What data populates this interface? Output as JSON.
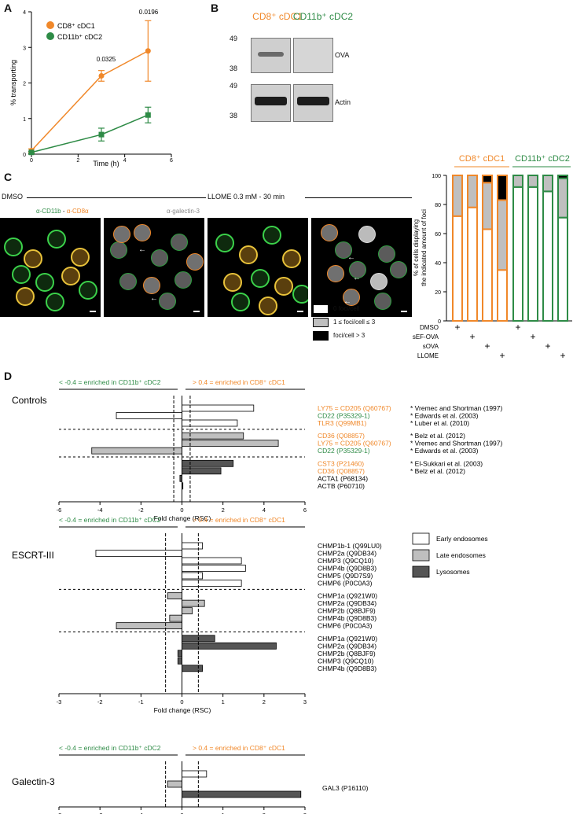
{
  "panels": {
    "a": "A",
    "b": "B",
    "c": "C",
    "d": "D"
  },
  "colors": {
    "orange": "#f0882a",
    "green": "#2e8b46",
    "dark": "#555555",
    "light": "#bfbfbf"
  },
  "panelA": {
    "legend": [
      "CD8⁺ cDC1",
      "CD11b⁺ cDC2"
    ],
    "ylabel": "% transporting",
    "xlabel": "Time (h)",
    "pvals": [
      "0.0325",
      "0.0196"
    ],
    "xticks": [
      "0",
      "2",
      "4",
      "6"
    ],
    "yticks": [
      "0",
      "1",
      "2",
      "3",
      "4"
    ]
  },
  "panelB": {
    "col1": "CD8⁺ cDC1",
    "col2": "CD11b⁺ cDC2",
    "mw": [
      "49",
      "38",
      "49",
      "38"
    ],
    "rows": [
      "OVA",
      "Actin"
    ]
  },
  "panelC": {
    "dmso": "DMSO",
    "llome": "LLOME 0.3 mM - 30 min",
    "stain1": "α-CD11b",
    "stain_sep": " - ",
    "stain2": "α-CD8α",
    "stain3": "α-galectin-3",
    "legend": [
      "0 foci/cell",
      "1 ≤ foci/cell ≤ 3",
      "foci/cell > 3"
    ],
    "bar_titles": [
      "CD8⁺ cDC1",
      "CD11b⁺ cDC2"
    ],
    "bar_ylabel1": "% of cells displaying",
    "bar_ylabel2": "the indicated amount of foci",
    "yticks": [
      "0",
      "20",
      "40",
      "60",
      "80",
      "100"
    ],
    "conditions": [
      "DMSO",
      "sEF-OVA",
      "sOVA",
      "LLOME"
    ],
    "plus": "+"
  },
  "panelD": {
    "left_arrow": "< -0.4 = enriched in CD11b⁺ cDC2",
    "right_arrow": "> 0.4 = enriched in CD8⁺ cDC1",
    "xlabel": "Fold change (RSC)",
    "legend": [
      "Early endosomes",
      "Late endosomes",
      "Lysosomes"
    ],
    "controls": {
      "title": "Controls",
      "ticks": [
        "-6",
        "-4",
        "-2",
        "0",
        "2",
        "4",
        "6"
      ],
      "labels": [
        "LY75 = CD205 (Q60767)",
        "CD22 (P35329-1)",
        "TLR3 (Q99MB1)",
        "CD36 (Q08857)",
        "LY75 = CD205 (Q60767)",
        "CD22 (P35329-1)",
        "CST3 (P21460)",
        "CD36 (Q08857)",
        "ACTA1 (P68134)",
        "ACTB (P60710)"
      ],
      "refs": [
        "* Vremec and Shortman (1997)",
        "* Edwards et al. (2003)",
        "* Luber et al. (2010)",
        "* Belz et al. (2012)",
        "* Vremec and Shortman (1997)",
        "* Edwards et al. (2003)",
        "* El-Sukkari et al. (2003)",
        "* Belz et al. (2012)"
      ]
    },
    "escrt": {
      "title": "ESCRT-III",
      "ticks": [
        "-3",
        "-2",
        "-1",
        "0",
        "1",
        "2",
        "3"
      ],
      "labels": [
        "CHMP1b-1 (Q99LU0)",
        "CHMP2a (Q9DB34)",
        "CHMP3 (Q9CQ10)",
        "CHMP4b (Q9D8B3)",
        "CHMP5 (Q9D7S9)",
        "CHMP6 (P0C0A3)",
        "CHMP1a (Q921W0)",
        "CHMP2a (Q9DB34)",
        "CHMP2b (Q8BJF9)",
        "CHMP4b (Q9D8B3)",
        "CHMP6 (P0C0A3)",
        "CHMP1a (Q921W0)",
        "CHMP2a (Q9DB34)",
        "CHMP2b (Q8BJF9)",
        "CHMP3 (Q9CQ10)",
        "CHMP4b (Q9D8B3)"
      ]
    },
    "gal": {
      "title": "Galectin-3",
      "ticks": [
        "-3",
        "-2",
        "-1",
        "0",
        "1",
        "2",
        "3"
      ],
      "labels": [
        "GAL3 (P16110)"
      ]
    }
  },
  "chart_data": [
    {
      "type": "line",
      "panel": "A",
      "xlabel": "Time (h)",
      "ylabel": "% transporting",
      "xlim": [
        0,
        6
      ],
      "ylim": [
        0,
        4
      ],
      "x": [
        0,
        3,
        5
      ],
      "series": [
        {
          "name": "CD8⁺ cDC1",
          "values": [
            0.1,
            2.2,
            2.9
          ],
          "err": [
            0.05,
            0.15,
            0.85
          ]
        },
        {
          "name": "CD11b⁺ cDC2",
          "values": [
            0.05,
            0.55,
            1.1
          ],
          "err": [
            0.03,
            0.18,
            0.22
          ]
        }
      ],
      "annotations": [
        "0.0325",
        "0.0196"
      ]
    },
    {
      "type": "bar",
      "panel": "C",
      "ylabel": "% of cells displaying the indicated amount of foci",
      "ylim": [
        0,
        100
      ],
      "categories": [
        "DMSO",
        "sEF-OVA",
        "sOVA",
        "LLOME"
      ],
      "series": [
        {
          "name": "CD8⁺ cDC1",
          "zero": [
            72,
            78,
            63,
            35
          ],
          "one_to_three": [
            28,
            22,
            32,
            48
          ],
          "over_three": [
            0,
            0,
            5,
            17
          ]
        },
        {
          "name": "CD11b⁺ cDC2",
          "zero": [
            92,
            92,
            89,
            71
          ],
          "one_to_three": [
            8,
            8,
            11,
            27
          ],
          "over_three": [
            0,
            0,
            0,
            2
          ]
        }
      ]
    },
    {
      "type": "bar",
      "panel": "D-Controls",
      "xlabel": "Fold change (RSC)",
      "xlim": [
        -6,
        6
      ],
      "categories": [
        "LY75 = CD205 (Q60767)",
        "CD22 (P35329-1)",
        "TLR3 (Q99MB1)",
        "CD36 (Q08857)",
        "LY75 = CD205 (Q60767)",
        "CD22 (P35329-1)",
        "CST3 (P21460)",
        "CD36 (Q08857)",
        "ACTA1 (P68134)",
        "ACTB (P60710)"
      ],
      "values": [
        3.5,
        -3.2,
        2.7,
        3.0,
        4.7,
        -4.4,
        2.5,
        1.9,
        -0.1,
        0.0
      ],
      "groups": [
        "early",
        "early",
        "early",
        "late",
        "late",
        "late",
        "lyso",
        "lyso",
        "lyso",
        "lyso"
      ]
    },
    {
      "type": "bar",
      "panel": "D-ESCRT-III",
      "xlabel": "Fold change (RSC)",
      "xlim": [
        -3,
        3
      ],
      "categories": [
        "CHMP1b-1 (Q99LU0)",
        "CHMP2a (Q9DB34)",
        "CHMP3 (Q9CQ10)",
        "CHMP4b (Q9D8B3)",
        "CHMP5 (Q9D7S9)",
        "CHMP6 (P0C0A3)",
        "CHMP1a (Q921W0)",
        "CHMP2a (Q9DB34)",
        "CHMP2b (Q8BJF9)",
        "CHMP4b (Q9D8B3)",
        "CHMP6 (P0C0A3)",
        "CHMP1a (Q921W0)",
        "CHMP2a (Q9DB34)",
        "CHMP2b (Q8BJF9)",
        "CHMP3 (Q9CQ10)",
        "CHMP4b (Q9D8B3)"
      ],
      "values": [
        0.5,
        -2.1,
        1.45,
        1.55,
        0.5,
        1.45,
        -0.35,
        0.55,
        0.25,
        -0.3,
        -1.6,
        0.8,
        2.3,
        -0.1,
        -0.1,
        0.5
      ],
      "groups": [
        "early",
        "early",
        "early",
        "early",
        "early",
        "early",
        "late",
        "late",
        "late",
        "late",
        "late",
        "lyso",
        "lyso",
        "lyso",
        "lyso",
        "lyso"
      ]
    },
    {
      "type": "bar",
      "panel": "D-Galectin-3",
      "xlabel": "Fold change (RSC)",
      "xlim": [
        -3,
        3
      ],
      "categories": [
        "GAL3 (P16110)",
        "GAL3 (P16110)",
        "GAL3 (P16110)"
      ],
      "values": [
        0.6,
        -0.35,
        2.9
      ],
      "groups": [
        "early",
        "late",
        "lyso"
      ]
    }
  ]
}
